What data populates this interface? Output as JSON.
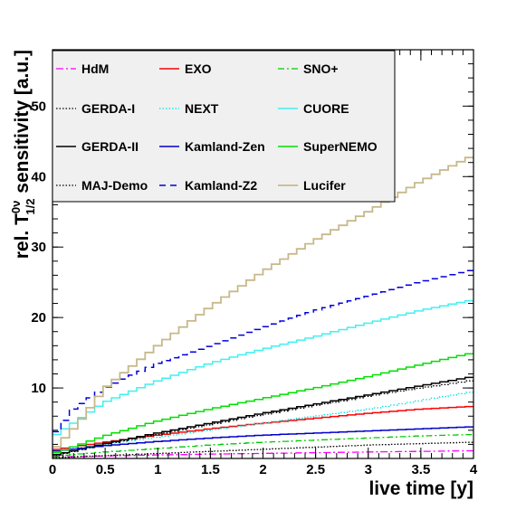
{
  "chart_data": {
    "type": "line",
    "xlabel": "live time [y]",
    "ylabel": {
      "prefix": "rel. T",
      "superscript": "0ν",
      "subscript": "1/2",
      "suffix": " sensitivity [a.u.]"
    },
    "xlim": [
      0,
      4
    ],
    "ylim": [
      0,
      58
    ],
    "xticks": [
      0,
      0.5,
      1,
      1.5,
      2,
      2.5,
      3,
      3.5,
      4
    ],
    "xtick_labels": [
      "0",
      "0.5",
      "1",
      "1.5",
      "2",
      "2.5",
      "3",
      "3.5",
      "4"
    ],
    "yticks": [
      10,
      20,
      30,
      40,
      50
    ],
    "ytick_labels": [
      "10",
      "20",
      "30",
      "40",
      "50"
    ],
    "grid": false,
    "legend_position": "top-left",
    "step": true,
    "series": [
      {
        "name": "HdM",
        "color": "#ff00ff",
        "dash": "8 3 2 3",
        "width": 1.3,
        "x": [
          0,
          0.5,
          1,
          1.5,
          2,
          2.5,
          3,
          3.5,
          4
        ],
        "y": [
          0.2,
          0.35,
          0.5,
          0.62,
          0.72,
          0.82,
          0.92,
          1.0,
          1.1
        ]
      },
      {
        "name": "EXO",
        "color": "#ff0000",
        "dash": "",
        "width": 1.5,
        "x": [
          0,
          0.5,
          1,
          1.5,
          2,
          2.5,
          3,
          3.5,
          4
        ],
        "y": [
          1.2,
          2.3,
          3.3,
          4.2,
          5.0,
          5.7,
          6.4,
          7.0,
          7.4
        ]
      },
      {
        "name": "SNO+",
        "color": "#00cc00",
        "dash": "7 3 2 3",
        "width": 1.3,
        "x": [
          0,
          0.5,
          1,
          1.5,
          2,
          2.5,
          3,
          3.5,
          4
        ],
        "y": [
          0.3,
          0.9,
          1.4,
          1.9,
          2.3,
          2.6,
          2.9,
          3.2,
          3.4
        ]
      },
      {
        "name": "GERDA-I",
        "color": "#000000",
        "dash": "1.5 2",
        "width": 1.3,
        "x": [
          0,
          0.5,
          1,
          1.5,
          2,
          2.5,
          3,
          3.5,
          4
        ],
        "y": [
          0.1,
          0.4,
          0.7,
          1.0,
          1.3,
          1.6,
          1.9,
          2.1,
          2.3
        ]
      },
      {
        "name": "NEXT",
        "color": "#00e0e0",
        "dash": "1.5 2",
        "width": 1.3,
        "x": [
          0,
          0.5,
          1,
          1.5,
          2,
          2.5,
          3,
          3.5,
          4
        ],
        "y": [
          1.0,
          2.0,
          3.0,
          4.0,
          5.0,
          6.0,
          7.0,
          8.2,
          9.5
        ]
      },
      {
        "name": "CUORE",
        "color": "#40f0f0",
        "dash": "",
        "width": 1.5,
        "x": [
          0,
          0.5,
          1,
          1.5,
          2,
          2.5,
          3,
          3.5,
          4
        ],
        "y": [
          3.0,
          8.0,
          11.0,
          13.5,
          15.5,
          17.3,
          19.2,
          21.0,
          22.5
        ]
      },
      {
        "name": "GERDA-II",
        "color": "#000000",
        "dash": "",
        "width": 1.5,
        "x": [
          0,
          0.5,
          1,
          1.5,
          2,
          2.5,
          3,
          3.5,
          4
        ],
        "y": [
          0.4,
          2.1,
          3.6,
          5.0,
          6.4,
          7.7,
          9.0,
          10.3,
          11.6
        ]
      },
      {
        "name": "Kamland-Zen",
        "color": "#0000cc",
        "dash": "",
        "width": 1.5,
        "x": [
          0,
          0.5,
          1,
          1.5,
          2,
          2.5,
          3,
          3.5,
          4
        ],
        "y": [
          1.0,
          1.8,
          2.4,
          2.9,
          3.3,
          3.6,
          3.9,
          4.2,
          4.5
        ]
      },
      {
        "name": "SuperNEMO",
        "color": "#00e000",
        "dash": "",
        "width": 1.5,
        "x": [
          0,
          0.5,
          1,
          1.5,
          2,
          2.5,
          3,
          3.5,
          4
        ],
        "y": [
          0.6,
          3.2,
          5.3,
          7.0,
          8.5,
          10.0,
          11.6,
          13.3,
          15.0
        ]
      },
      {
        "name": "MAJ-Demo",
        "color": "#000000",
        "dash": "1.5 2",
        "width": 1.3,
        "x": [
          0,
          0.5,
          1,
          1.5,
          2,
          2.5,
          3,
          3.5,
          4
        ],
        "y": [
          0.3,
          2.0,
          3.4,
          4.8,
          6.2,
          7.5,
          8.8,
          10.0,
          11.1
        ]
      },
      {
        "name": "Kamland-Z2",
        "color": "#0000dd",
        "dash": "7 5",
        "width": 1.5,
        "x": [
          0,
          0.2,
          0.5,
          1,
          1.5,
          2,
          2.5,
          3,
          3.5,
          4
        ],
        "y": [
          3.0,
          7.0,
          10.0,
          13.5,
          16.0,
          18.5,
          21.0,
          23.0,
          25.0,
          26.8
        ]
      },
      {
        "name": "Lucifer",
        "color": "#c8b88a",
        "dash": "",
        "width": 1.8,
        "x": [
          0,
          0.25,
          0.5,
          1,
          1.5,
          2,
          2.5,
          3,
          3.5,
          4
        ],
        "y": [
          1.0,
          5.0,
          10.0,
          16.0,
          21.5,
          26.5,
          31.0,
          35.0,
          39.3,
          43.0
        ]
      }
    ],
    "legend_layout": [
      [
        "HdM",
        "EXO",
        "SNO+"
      ],
      [
        "GERDA-I",
        "NEXT",
        "CUORE"
      ],
      [
        "GERDA-II",
        "Kamland-Zen",
        "SuperNEMO"
      ],
      [
        "MAJ-Demo",
        "Kamland-Z2",
        "Lucifer"
      ]
    ]
  }
}
